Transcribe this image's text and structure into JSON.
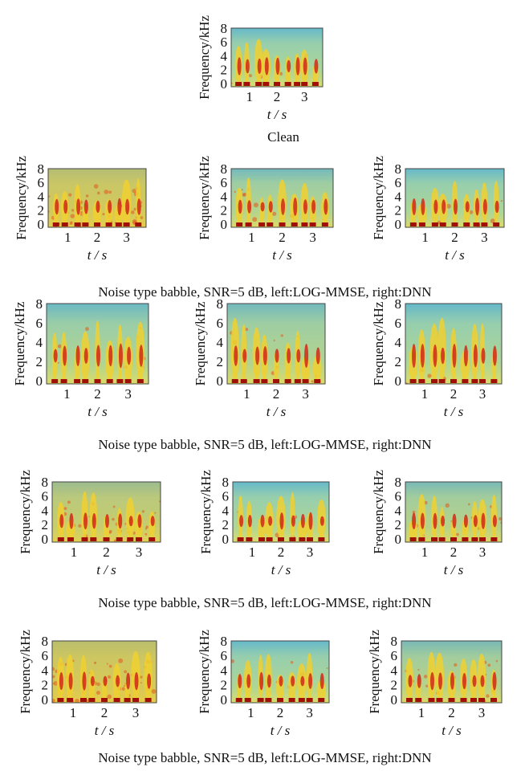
{
  "figure": {
    "panels": [
      {
        "y_label": "Frequency/kHz",
        "y_ticks": [
          "0",
          "2",
          "4",
          "6",
          "8"
        ],
        "x_ticks": [
          "1",
          "2",
          "3"
        ],
        "x_label": "t / s"
      },
      {
        "y_label": "Frequency/kHz",
        "y_ticks": [
          "0",
          "2",
          "4",
          "6",
          "8"
        ],
        "x_ticks": [
          "1",
          "2",
          "3"
        ],
        "x_label": "t / s"
      },
      {
        "y_label": "Frequency/kHz",
        "y_ticks": [
          "0",
          "2",
          "4",
          "6",
          "8"
        ],
        "x_ticks": [
          "1",
          "2",
          "3"
        ],
        "x_label": "t / s"
      },
      {
        "y_label": "Frequency/kHz",
        "y_ticks": [
          "0",
          "2",
          "4",
          "6",
          "8"
        ],
        "x_ticks": [
          "1",
          "2",
          "3"
        ],
        "x_label": "t / s"
      },
      {
        "y_label": "Frequency/kHz",
        "y_ticks": [
          "0",
          "2",
          "4",
          "6",
          "8"
        ],
        "x_ticks": [
          "1",
          "2",
          "3"
        ],
        "x_label": "t / s"
      },
      {
        "y_label": "Frequency/kHz",
        "y_ticks": [
          "0",
          "2",
          "4",
          "6",
          "8"
        ],
        "x_ticks": [
          "1",
          "2",
          "3"
        ],
        "x_label": "t / s"
      },
      {
        "y_label": "Frequency/kHz",
        "y_ticks": [
          "0",
          "2",
          "4",
          "6",
          "8"
        ],
        "x_ticks": [
          "1",
          "2",
          "3"
        ],
        "x_label": "t / s"
      },
      {
        "y_label": "Frequency/kHz",
        "y_ticks": [
          "0",
          "2",
          "4",
          "6",
          "8"
        ],
        "x_ticks": [
          "1",
          "2",
          "3"
        ],
        "x_label": "t / s"
      },
      {
        "y_label": "Frequency/kHz",
        "y_ticks": [
          "0",
          "2",
          "4",
          "6",
          "8"
        ],
        "x_ticks": [
          "1",
          "2",
          "3"
        ],
        "x_label": "t / s"
      },
      {
        "y_label": "Frequency/kHz",
        "y_ticks": [
          "0",
          "2",
          "4",
          "6",
          "8"
        ],
        "x_ticks": [
          "1",
          "2",
          "3"
        ],
        "x_label": "t / s"
      },
      {
        "y_label": "Frequency/kHz",
        "y_ticks": [
          "0",
          "2",
          "4",
          "6",
          "8"
        ],
        "x_ticks": [
          "1",
          "2",
          "3"
        ],
        "x_label": "t / s"
      },
      {
        "y_label": "Frequency/kHz",
        "y_ticks": [
          "0",
          "2",
          "4",
          "6",
          "8"
        ],
        "x_ticks": [
          "1",
          "2",
          "3"
        ],
        "x_label": "t / s"
      },
      {
        "y_label": "Frequency/kHz",
        "y_ticks": [
          "0",
          "2",
          "4",
          "6",
          "8"
        ],
        "x_ticks": [
          "1",
          "2",
          "3"
        ],
        "x_label": "t / s"
      }
    ],
    "captions": [
      "Clean",
      "Noise type babble, SNR=5 dB, left:LOG-MMSE, right:DNN",
      "Noise type babble, SNR=5 dB, left:LOG-MMSE, right:DNN",
      "Noise type babble, SNR=5 dB, left:LOG-MMSE, right:DNN",
      "Noise type babble, SNR=5 dB, left:LOG-MMSE, right:DNN"
    ]
  }
}
